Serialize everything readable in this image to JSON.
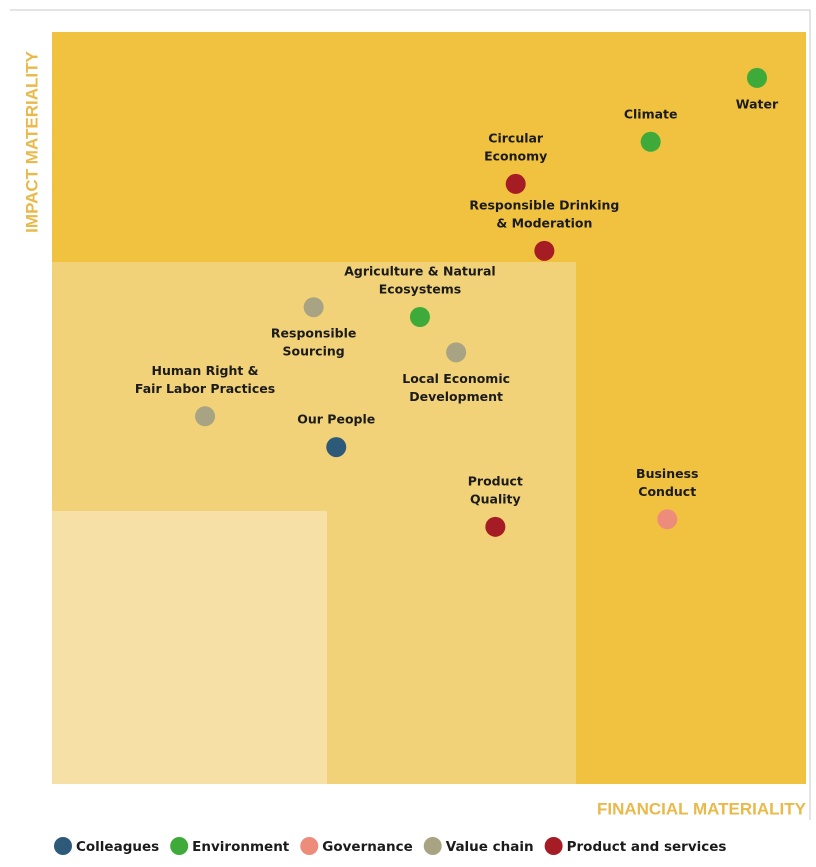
{
  "chart_data": {
    "type": "scatter",
    "xlabel": "FINANCIAL MATERIALITY",
    "ylabel": "IMPACT MATERIALITY",
    "xlim": [
      0,
      100
    ],
    "ylim": [
      0,
      100
    ],
    "series": [
      {
        "name": "Colleagues",
        "color": "#2e5a7a",
        "labels": [
          [
            "Our People"
          ]
        ],
        "x": [
          37.7
        ],
        "y": [
          44.8
        ]
      },
      {
        "name": "Environment",
        "color": "#3daa3a",
        "labels": [
          [
            "Water"
          ],
          [
            "Climate"
          ],
          [
            "Agriculture & Natural",
            "Ecosystems"
          ]
        ],
        "x": [
          93.5,
          79.4,
          48.8
        ],
        "y": [
          93.9,
          85.4,
          62.1
        ]
      },
      {
        "name": "Governance",
        "color": "#ee8c7c",
        "labels": [
          [
            "Business",
            "Conduct"
          ]
        ],
        "x": [
          81.6
        ],
        "y": [
          35.2
        ]
      },
      {
        "name": "Value chain",
        "color": "#a8a382",
        "labels": [
          [
            "Responsible",
            "Sourcing"
          ],
          [
            "Local Economic",
            "Development"
          ],
          [
            "Human Right &",
            "Fair Labor Practices"
          ]
        ],
        "x": [
          34.7,
          53.6,
          20.3
        ],
        "y": [
          63.4,
          57.4,
          48.9
        ]
      },
      {
        "name": "Product and services",
        "color": "#a51c24",
        "labels": [
          [
            "Circular",
            "Economy"
          ],
          [
            "Responsible Drinking",
            "& Moderation"
          ],
          [
            "Product",
            "Quality"
          ]
        ],
        "x": [
          61.5,
          65.3,
          58.8
        ],
        "y": [
          79.8,
          70.9,
          34.2
        ]
      }
    ]
  }
}
